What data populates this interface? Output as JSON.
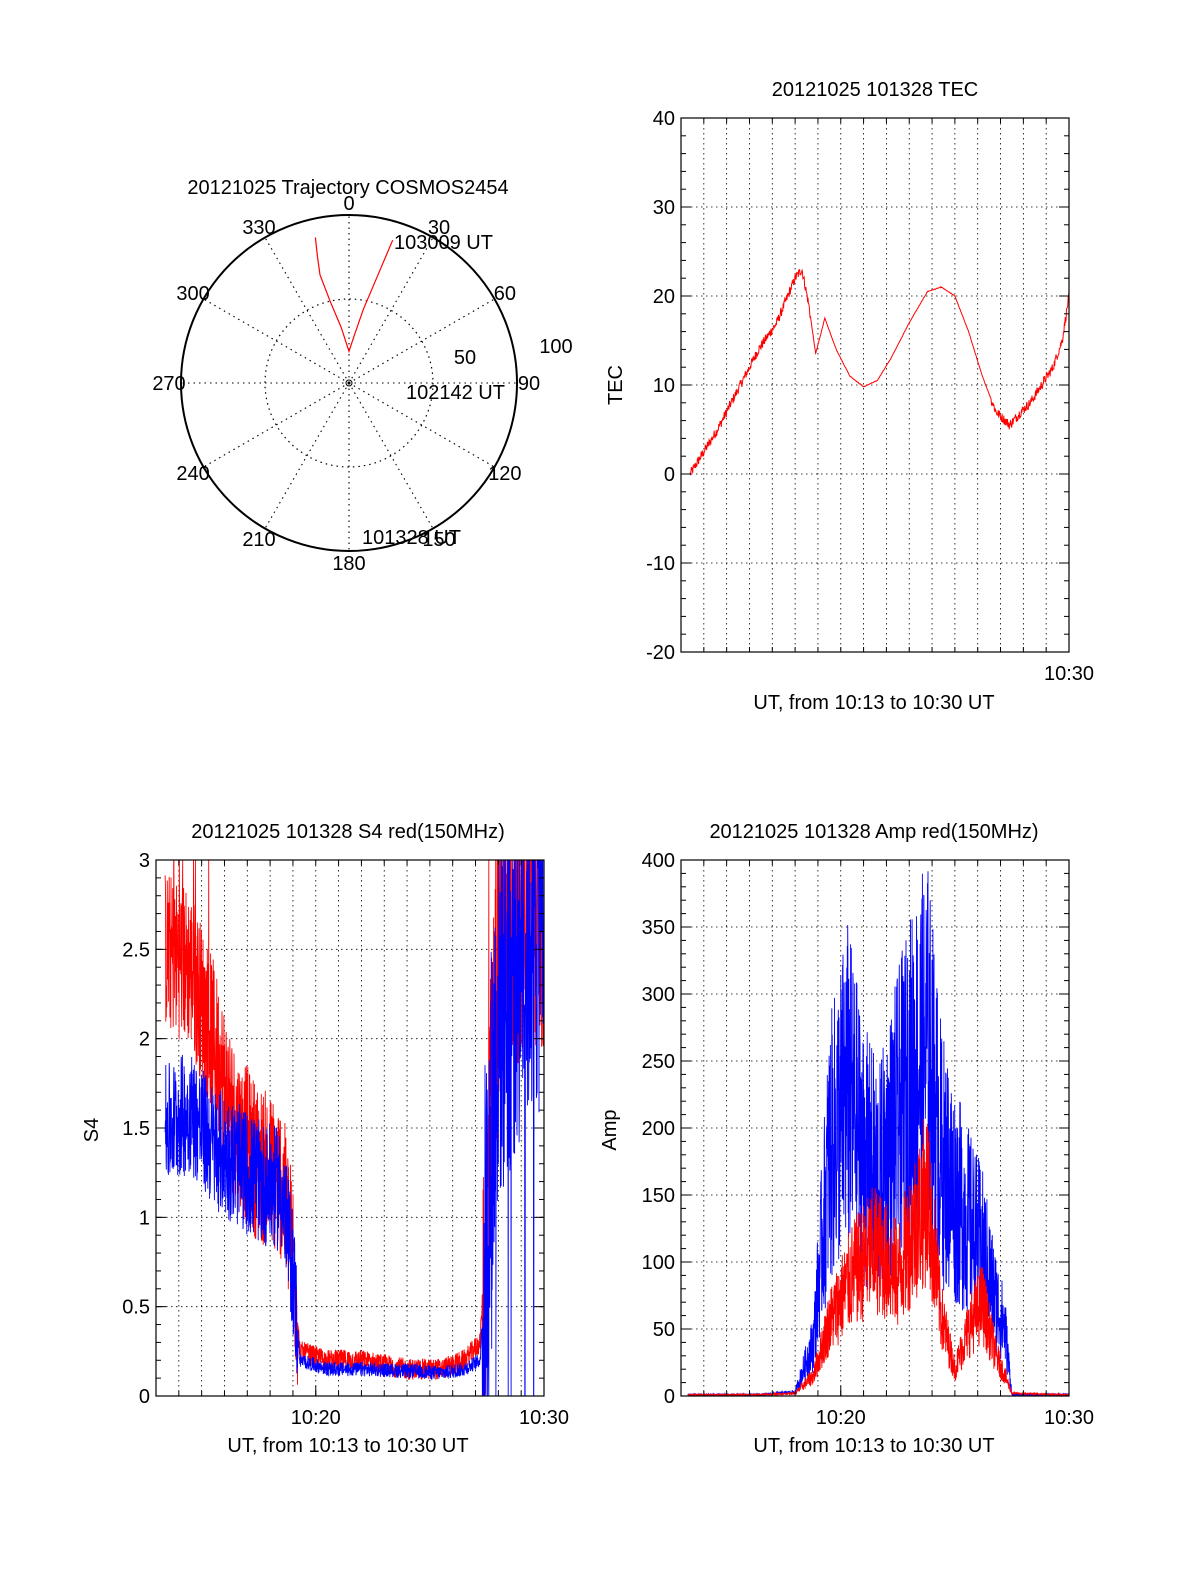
{
  "chart_data": [
    {
      "type": "polar",
      "title": "20121025 Trajectory COSMOS2454",
      "azimuth_labels": [
        "0",
        "30",
        "60",
        "90",
        "120",
        "150",
        "180",
        "210",
        "240",
        "270",
        "300",
        "330"
      ],
      "radial_labels": [
        "50",
        "100"
      ],
      "series": [
        {
          "color": "#ff0000",
          "points_az_el": [
            [
              17,
              10
            ],
            [
              15,
              30
            ],
            [
              11,
              50
            ],
            [
              6,
              65
            ],
            [
              0,
              73
            ],
            [
              -8,
              60
            ],
            [
              -13,
              45
            ],
            [
              -15,
              30
            ],
            [
              -14,
              20
            ],
            [
              -13,
              10
            ]
          ],
          "labels": [
            "103009 UT",
            "102142 UT",
            "101328 UT"
          ]
        }
      ]
    },
    {
      "type": "line",
      "title": "20121025 101328 TEC",
      "xlabel": "UT, from 10:13 to 10:30 UT",
      "ylabel": "TEC",
      "xlim": [
        "10:13",
        "10:30"
      ],
      "xtick_labels": [
        "10:30"
      ],
      "ylim": [
        -20,
        40
      ],
      "ytick_labels": [
        "-20",
        "-10",
        "0",
        "10",
        "20",
        "30",
        "40"
      ],
      "grid": true,
      "series": [
        {
          "color": "#ff0000",
          "x_min": [
            13.4,
            14.0,
            14.6,
            15.2,
            15.8,
            16.4,
            17.2,
            18.0,
            18.3,
            18.6,
            18.9,
            19.3,
            19.8,
            20.4,
            21.0,
            21.6,
            22.2,
            23.0,
            23.8,
            24.4,
            25.0,
            25.6,
            26.2,
            26.8,
            27.4,
            27.9,
            28.3,
            28.8,
            29.3,
            29.7,
            30.0
          ],
          "tec": [
            0,
            2.5,
            5,
            8,
            11,
            14,
            17,
            22,
            23,
            19,
            13.5,
            17.5,
            14,
            11,
            9.8,
            10.5,
            13,
            17,
            20.5,
            21,
            20,
            16,
            11,
            7,
            5.5,
            7,
            8,
            10,
            12,
            15,
            20
          ]
        }
      ]
    },
    {
      "type": "line",
      "title": "20121025 101328 S4 red(150MHz)",
      "xlabel": "UT, from 10:13 to 10:30 UT",
      "ylabel": "S4",
      "xlim": [
        "10:13",
        "10:30"
      ],
      "xtick_labels": [
        "10:20",
        "10:30"
      ],
      "ylim": [
        0,
        3
      ],
      "ytick_labels": [
        "0",
        "0.5",
        "1",
        "1.5",
        "2",
        "2.5",
        "3"
      ],
      "grid": true,
      "series": [
        {
          "color": "#ff0000",
          "x_min": [
            13.4,
            14.5,
            15.5,
            16.5,
            17.5,
            18.5,
            19.0,
            19.3,
            20.5,
            22,
            24,
            25.5,
            26.5,
            27.2,
            27.5,
            28,
            29,
            30
          ],
          "s4": [
            2.5,
            2.4,
            2.0,
            1.5,
            1.3,
            1.2,
            0.8,
            0.25,
            0.2,
            0.2,
            0.15,
            0.15,
            0.2,
            0.3,
            1.0,
            2.5,
            2.8,
            2.8
          ]
        },
        {
          "color": "#0000ff",
          "x_min": [
            13.4,
            14.5,
            15.5,
            16.5,
            17.5,
            18.5,
            19.0,
            19.3,
            20.5,
            22,
            24,
            25.5,
            26.5,
            27.2,
            27.5,
            28,
            29,
            30
          ],
          "s4": [
            1.5,
            1.6,
            1.4,
            1.3,
            1.2,
            1.15,
            0.7,
            0.2,
            0.15,
            0.15,
            0.14,
            0.13,
            0.15,
            0.2,
            0.9,
            2.2,
            2.6,
            2.8
          ]
        }
      ]
    },
    {
      "type": "line",
      "title": "20121025 101328 Amp red(150MHz)",
      "xlabel": "UT, from 10:13 to 10:30 UT",
      "ylabel": "Amp",
      "xlim": [
        "10:13",
        "10:30"
      ],
      "xtick_labels": [
        "10:20",
        "10:30"
      ],
      "ylim": [
        0,
        400
      ],
      "ytick_labels": [
        "0",
        "50",
        "100",
        "150",
        "200",
        "250",
        "300",
        "350",
        "400"
      ],
      "grid": true,
      "series": [
        {
          "color": "#ff0000",
          "x_min": [
            13.3,
            16.5,
            18.0,
            18.8,
            19.5,
            20.5,
            21.5,
            22.5,
            23.3,
            23.8,
            24.4,
            25.0,
            25.6,
            26.2,
            26.8,
            27.2,
            27.5,
            30
          ],
          "amp": [
            1,
            1,
            2,
            15,
            55,
            90,
            110,
            90,
            130,
            150,
            60,
            20,
            50,
            70,
            30,
            15,
            2,
            1
          ]
        },
        {
          "color": "#0000ff",
          "x_min": [
            13.3,
            16.5,
            18.0,
            18.8,
            19.5,
            20.3,
            21.0,
            21.7,
            22.4,
            23.2,
            23.8,
            24.4,
            25.0,
            25.6,
            26.2,
            26.8,
            27.2,
            27.5,
            30
          ],
          "amp": [
            1,
            1,
            3,
            40,
            180,
            230,
            180,
            160,
            200,
            240,
            260,
            180,
            150,
            130,
            110,
            70,
            50,
            1,
            1
          ]
        }
      ]
    }
  ]
}
